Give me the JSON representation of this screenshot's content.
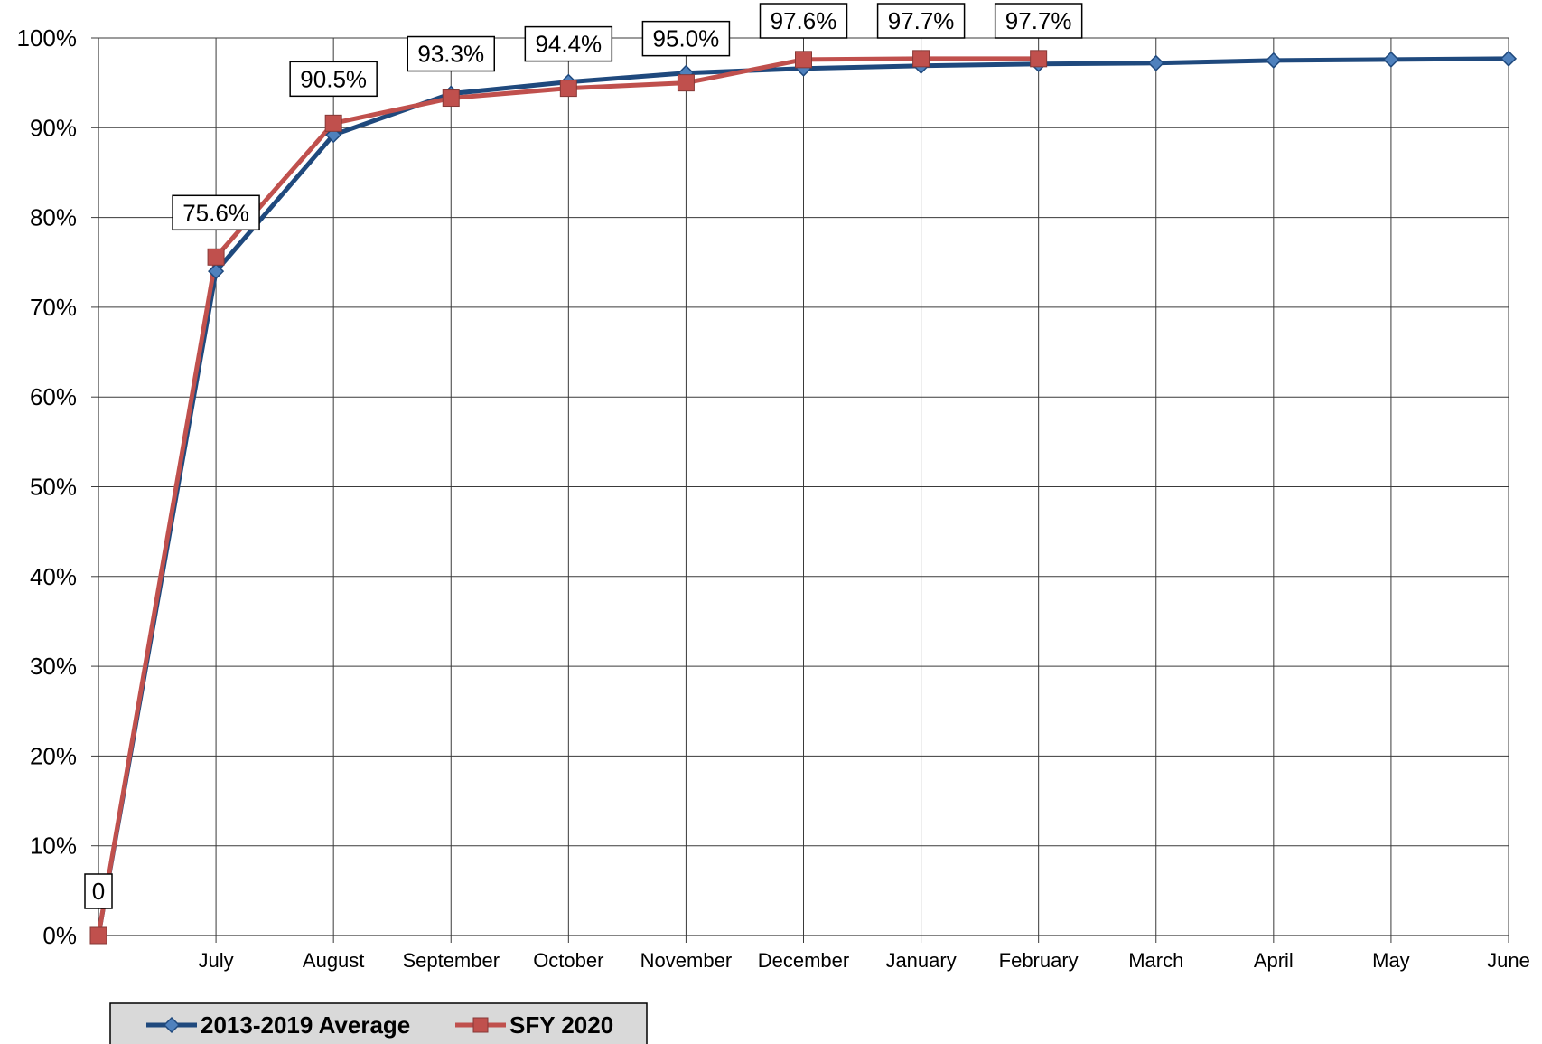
{
  "chart_data": {
    "type": "line",
    "categories": [
      "",
      "July",
      "August",
      "September",
      "October",
      "November",
      "December",
      "January",
      "February",
      "March",
      "April",
      "May",
      "June"
    ],
    "y_ticks": [
      "0%",
      "10%",
      "20%",
      "30%",
      "40%",
      "50%",
      "60%",
      "70%",
      "80%",
      "90%",
      "100%"
    ],
    "ylim": [
      0,
      100
    ],
    "grid": true,
    "legend_position": "bottom-left",
    "series": [
      {
        "name": "2013-2019 Average",
        "color": "#1F497D",
        "marker": "diamond",
        "values": [
          0,
          74.0,
          89.2,
          93.8,
          95.1,
          96.1,
          96.6,
          96.9,
          97.1,
          97.2,
          97.5,
          97.6,
          97.7
        ]
      },
      {
        "name": "SFY 2020",
        "color": "#C0504D",
        "marker": "square",
        "values": [
          0,
          75.6,
          90.5,
          93.3,
          94.4,
          95.0,
          97.6,
          97.7,
          97.7,
          null,
          null,
          null,
          null
        ]
      }
    ],
    "data_labels": [
      {
        "index": 0,
        "text": "0",
        "value": 0
      },
      {
        "index": 1,
        "text": "75.6%",
        "value": 75.6
      },
      {
        "index": 2,
        "text": "90.5%",
        "value": 90.5
      },
      {
        "index": 3,
        "text": "93.3%",
        "value": 93.3
      },
      {
        "index": 4,
        "text": "94.4%",
        "value": 94.4
      },
      {
        "index": 5,
        "text": "95.0%",
        "value": 95.0
      },
      {
        "index": 6,
        "text": "97.6%",
        "value": 97.6
      },
      {
        "index": 7,
        "text": "97.7%",
        "value": 97.7
      },
      {
        "index": 8,
        "text": "97.7%",
        "value": 97.7
      }
    ]
  }
}
